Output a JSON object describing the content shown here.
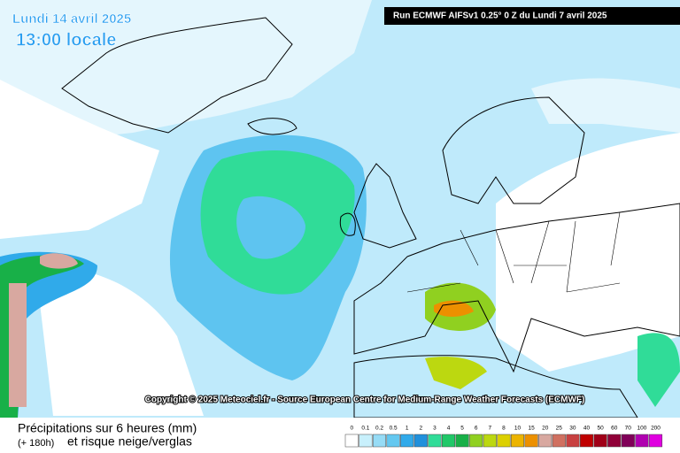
{
  "header": {
    "date": "Lundi 14 avril 2025",
    "time": "13:00 locale",
    "run": "Run ECMWF AIFSv1 0.25° 0 Z du Lundi 7 avril 2025"
  },
  "copyright": "Copyright © 2025 Meteociel.fr - Source European Centre for Medium-Range Weather Forecasts (ECMWF)",
  "footer": {
    "title": "Précipitations sur 6 heures (mm)",
    "lead": "(+ 180h)",
    "subtitle": "et risque neige/verglas"
  },
  "legend": [
    {
      "label": "0",
      "color": "#ffffff"
    },
    {
      "label": "0.1",
      "color": "#c8f0fc"
    },
    {
      "label": "0.2",
      "color": "#96dcf6"
    },
    {
      "label": "0.5",
      "color": "#64c8f0"
    },
    {
      "label": "1",
      "color": "#30aaea"
    },
    {
      "label": "2",
      "color": "#2090dc"
    },
    {
      "label": "3",
      "color": "#30dc98"
    },
    {
      "label": "4",
      "color": "#20c868"
    },
    {
      "label": "5",
      "color": "#18b048"
    },
    {
      "label": "6",
      "color": "#90d020"
    },
    {
      "label": "7",
      "color": "#bcd810"
    },
    {
      "label": "8",
      "color": "#dcd000"
    },
    {
      "label": "10",
      "color": "#ecb400"
    },
    {
      "label": "15",
      "color": "#ec9000"
    },
    {
      "label": "20",
      "color": "#d8a8a0"
    },
    {
      "label": "25",
      "color": "#d07060"
    },
    {
      "label": "30",
      "color": "#c84040"
    },
    {
      "label": "40",
      "color": "#c00000"
    },
    {
      "label": "50",
      "color": "#a00018"
    },
    {
      "label": "60",
      "color": "#900038"
    },
    {
      "label": "70",
      "color": "#800058"
    },
    {
      "label": "100",
      "color": "#b000b0"
    },
    {
      "label": "200",
      "color": "#e000e0"
    }
  ]
}
